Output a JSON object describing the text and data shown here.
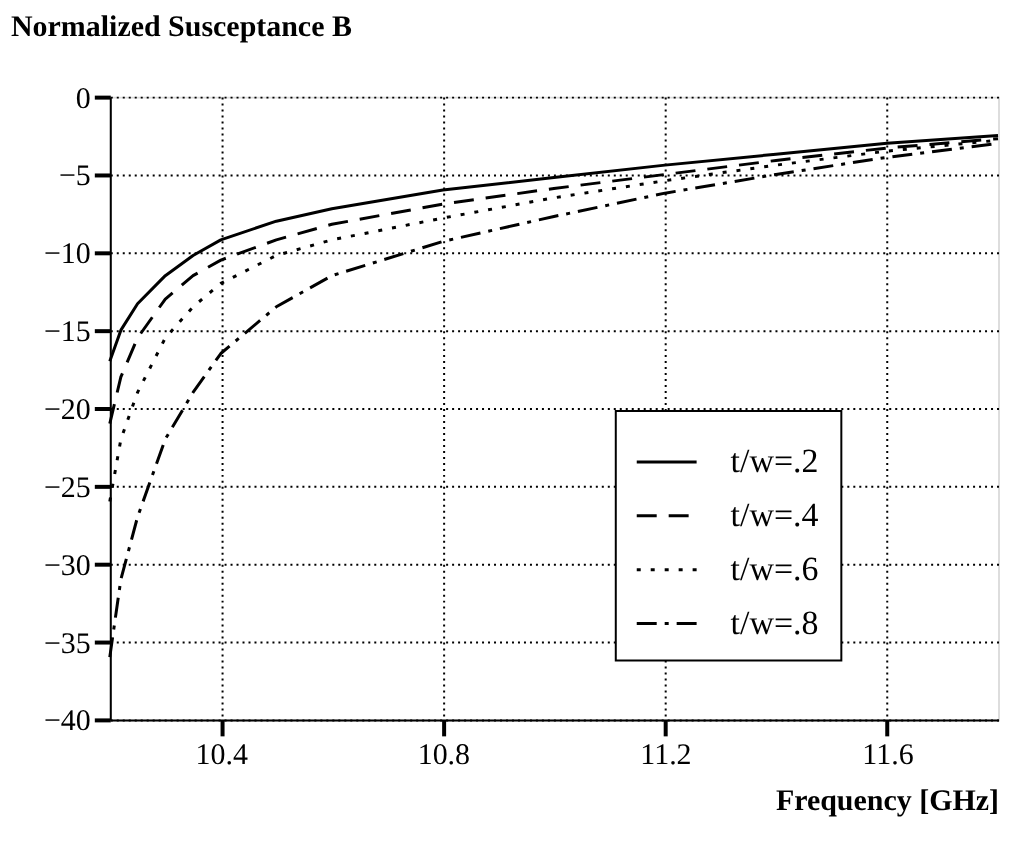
{
  "chart_data": {
    "type": "line",
    "ylabel": "Normalized Susceptance B",
    "xlabel": "Frequency [GHz]",
    "xlim": [
      10.2,
      11.8
    ],
    "xticks": [
      10.4,
      10.8,
      11.2,
      11.6
    ],
    "ylim": [
      -40,
      0
    ],
    "yticks": [
      0,
      -5,
      -10,
      -15,
      -20,
      -25,
      -30,
      -35,
      -40
    ],
    "grid": true,
    "legend": "bottom right",
    "marker": "none",
    "x": [
      10.2,
      10.22,
      10.25,
      10.3,
      10.35,
      10.4,
      10.5,
      10.6,
      10.8,
      11.0,
      11.2,
      11.4,
      11.6,
      11.8
    ],
    "series": [
      {
        "name": "t/w=.2",
        "color": "#000000",
        "line_style": "solid",
        "values": [
          -17,
          -15,
          -13.3,
          -11.5,
          -10.2,
          -9.2,
          -8,
          -7.2,
          -6,
          -5.2,
          -4.4,
          -3.7,
          -3.0,
          -2.5
        ]
      },
      {
        "name": "t/w=.4",
        "color": "#000000",
        "line_style": "dashed",
        "values": [
          -21,
          -18,
          -15.5,
          -13,
          -11.5,
          -10.5,
          -9.2,
          -8.2,
          -6.9,
          -5.9,
          -5.0,
          -4.1,
          -3.3,
          -2.7
        ]
      },
      {
        "name": "t/w=.6",
        "color": "#000000",
        "line_style": "dotted",
        "values": [
          -26,
          -22,
          -19,
          -15.5,
          -13.5,
          -12,
          -10.2,
          -9.2,
          -7.8,
          -6.5,
          -5.4,
          -4.4,
          -3.5,
          -2.8
        ]
      },
      {
        "name": "t/w=.8",
        "color": "#000000",
        "line_style": "dashdot",
        "values": [
          -36,
          -31,
          -27,
          -22,
          -19,
          -16.5,
          -13.5,
          -11.5,
          -9.3,
          -7.7,
          -6.2,
          -5.0,
          -3.9,
          -3.0
        ]
      }
    ]
  }
}
